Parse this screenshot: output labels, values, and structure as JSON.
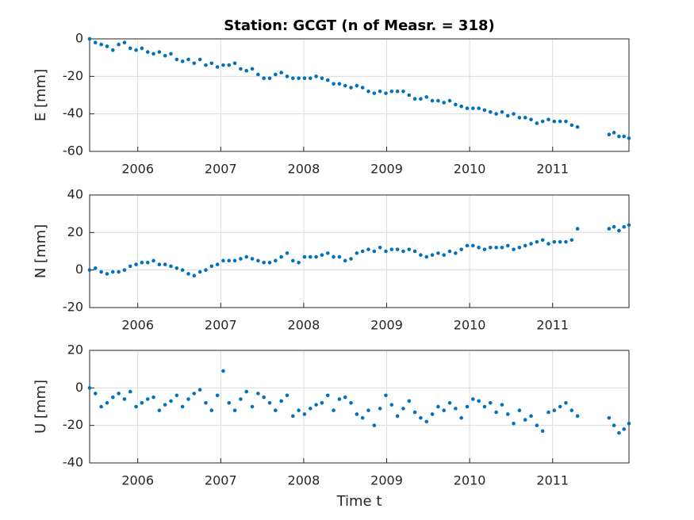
{
  "chart_data": [
    {
      "type": "scatter",
      "title": "Station: GCGT (n of Measr. = 318)",
      "ylabel": "E [mm]",
      "x": [
        2005.42,
        2005.49,
        2005.56,
        2005.63,
        2005.7,
        2005.77,
        2005.84,
        2005.91,
        2005.98,
        2006.05,
        2006.12,
        2006.19,
        2006.26,
        2006.33,
        2006.4,
        2006.47,
        2006.54,
        2006.61,
        2006.68,
        2006.75,
        2006.82,
        2006.89,
        2006.96,
        2007.03,
        2007.1,
        2007.17,
        2007.24,
        2007.31,
        2007.38,
        2007.45,
        2007.52,
        2007.59,
        2007.66,
        2007.73,
        2007.8,
        2007.87,
        2007.94,
        2008.01,
        2008.08,
        2008.15,
        2008.22,
        2008.29,
        2008.36,
        2008.43,
        2008.5,
        2008.57,
        2008.64,
        2008.71,
        2008.78,
        2008.85,
        2008.92,
        2008.99,
        2009.06,
        2009.13,
        2009.2,
        2009.27,
        2009.34,
        2009.41,
        2009.48,
        2009.55,
        2009.62,
        2009.69,
        2009.76,
        2009.83,
        2009.9,
        2009.97,
        2010.04,
        2010.11,
        2010.18,
        2010.25,
        2010.32,
        2010.39,
        2010.46,
        2010.53,
        2010.6,
        2010.67,
        2010.74,
        2010.81,
        2010.88,
        2010.95,
        2011.02,
        2011.09,
        2011.16,
        2011.23,
        2011.3,
        2011.68,
        2011.74,
        2011.8,
        2011.86,
        2011.92
      ],
      "series": [
        {
          "color": "#0072bd",
          "values": [
            0,
            -2,
            -3,
            -4,
            -6,
            -3,
            -2,
            -5,
            -6,
            -5,
            -7,
            -8,
            -7,
            -9,
            -8,
            -11,
            -12,
            -11,
            -13,
            -11,
            -14,
            -13,
            -15,
            -14,
            -14,
            -13,
            -16,
            -17,
            -16,
            -19,
            -21,
            -21,
            -19,
            -18,
            -20,
            -21,
            -21,
            -21,
            -21,
            -20,
            -21,
            -22,
            -24,
            -24,
            -25,
            -26,
            -25,
            -26,
            -28,
            -29,
            -28,
            -29,
            -28,
            -28,
            -28,
            -30,
            -32,
            -32,
            -31,
            -33,
            -33,
            -34,
            -33,
            -35,
            -36,
            -37,
            -37,
            -37,
            -38,
            -39,
            -40,
            -39,
            -41,
            -40,
            -42,
            -42,
            -43,
            -45,
            -44,
            -43,
            -44,
            -44,
            -44,
            -46,
            -47,
            -51,
            -50,
            -52,
            -52,
            -53
          ]
        }
      ],
      "xlim": [
        2005.42,
        2011.92
      ],
      "xticks": [
        2006,
        2007,
        2008,
        2009,
        2010,
        2011
      ],
      "ylim": [
        -60,
        0
      ],
      "yticks": [
        -60,
        -40,
        -20,
        0
      ],
      "grid": true
    },
    {
      "type": "scatter",
      "ylabel": "N [mm]",
      "x": [
        2005.42,
        2005.49,
        2005.56,
        2005.63,
        2005.7,
        2005.77,
        2005.84,
        2005.91,
        2005.98,
        2006.05,
        2006.12,
        2006.19,
        2006.26,
        2006.33,
        2006.4,
        2006.47,
        2006.54,
        2006.61,
        2006.68,
        2006.75,
        2006.82,
        2006.89,
        2006.96,
        2007.03,
        2007.1,
        2007.17,
        2007.24,
        2007.31,
        2007.38,
        2007.45,
        2007.52,
        2007.59,
        2007.66,
        2007.73,
        2007.8,
        2007.87,
        2007.94,
        2008.01,
        2008.08,
        2008.15,
        2008.22,
        2008.29,
        2008.36,
        2008.43,
        2008.5,
        2008.57,
        2008.64,
        2008.71,
        2008.78,
        2008.85,
        2008.92,
        2008.99,
        2009.06,
        2009.13,
        2009.2,
        2009.27,
        2009.34,
        2009.41,
        2009.48,
        2009.55,
        2009.62,
        2009.69,
        2009.76,
        2009.83,
        2009.9,
        2009.97,
        2010.04,
        2010.11,
        2010.18,
        2010.25,
        2010.32,
        2010.39,
        2010.46,
        2010.53,
        2010.6,
        2010.67,
        2010.74,
        2010.81,
        2010.88,
        2010.95,
        2011.02,
        2011.09,
        2011.16,
        2011.23,
        2011.3,
        2011.68,
        2011.74,
        2011.8,
        2011.86,
        2011.92
      ],
      "series": [
        {
          "color": "#0072bd",
          "values": [
            0,
            1,
            -1,
            -2,
            -1,
            -1,
            0,
            2,
            3,
            4,
            4,
            5,
            3,
            3,
            2,
            1,
            0,
            -2,
            -3,
            -1,
            0,
            2,
            3,
            5,
            5,
            5,
            6,
            7,
            6,
            5,
            4,
            4,
            5,
            7,
            9,
            5,
            4,
            7,
            7,
            7,
            8,
            9,
            7,
            7,
            5,
            6,
            9,
            10,
            11,
            10,
            12,
            10,
            11,
            11,
            10,
            11,
            10,
            8,
            7,
            8,
            9,
            8,
            10,
            9,
            11,
            13,
            13,
            12,
            11,
            12,
            12,
            12,
            13,
            11,
            12,
            13,
            14,
            15,
            16,
            14,
            15,
            15,
            15,
            16,
            22,
            22,
            23,
            21,
            23,
            24
          ]
        }
      ],
      "xlim": [
        2005.42,
        2011.92
      ],
      "xticks": [
        2006,
        2007,
        2008,
        2009,
        2010,
        2011
      ],
      "ylim": [
        -20,
        40
      ],
      "yticks": [
        -20,
        0,
        20,
        40
      ],
      "grid": true
    },
    {
      "type": "scatter",
      "ylabel": "U [mm]",
      "xlabel": "Time t",
      "x": [
        2005.42,
        2005.49,
        2005.56,
        2005.63,
        2005.7,
        2005.77,
        2005.84,
        2005.91,
        2005.98,
        2006.05,
        2006.12,
        2006.19,
        2006.26,
        2006.33,
        2006.4,
        2006.47,
        2006.54,
        2006.61,
        2006.68,
        2006.75,
        2006.82,
        2006.89,
        2006.96,
        2007.03,
        2007.1,
        2007.17,
        2007.24,
        2007.31,
        2007.38,
        2007.45,
        2007.52,
        2007.59,
        2007.66,
        2007.73,
        2007.8,
        2007.87,
        2007.94,
        2008.01,
        2008.08,
        2008.15,
        2008.22,
        2008.29,
        2008.36,
        2008.43,
        2008.5,
        2008.57,
        2008.64,
        2008.71,
        2008.78,
        2008.85,
        2008.92,
        2008.99,
        2009.06,
        2009.13,
        2009.2,
        2009.27,
        2009.34,
        2009.41,
        2009.48,
        2009.55,
        2009.62,
        2009.69,
        2009.76,
        2009.83,
        2009.9,
        2009.97,
        2010.04,
        2010.11,
        2010.18,
        2010.25,
        2010.32,
        2010.39,
        2010.46,
        2010.53,
        2010.6,
        2010.67,
        2010.74,
        2010.81,
        2010.88,
        2010.95,
        2011.02,
        2011.09,
        2011.16,
        2011.23,
        2011.3,
        2011.68,
        2011.74,
        2011.8,
        2011.86,
        2011.92
      ],
      "series": [
        {
          "color": "#0072bd",
          "values": [
            0,
            -3,
            -10,
            -8,
            -5,
            -3,
            -6,
            -2,
            -10,
            -8,
            -6,
            -5,
            -12,
            -9,
            -7,
            -4,
            -10,
            -6,
            -3,
            -1,
            -8,
            -12,
            -4,
            9,
            -8,
            -12,
            -6,
            -2,
            -10,
            -3,
            -5,
            -8,
            -12,
            -7,
            -4,
            -15,
            -12,
            -14,
            -11,
            -9,
            -8,
            -4,
            -12,
            -6,
            -5,
            -8,
            -14,
            -16,
            -12,
            -20,
            -11,
            -4,
            -9,
            -15,
            -11,
            -7,
            -13,
            -16,
            -18,
            -14,
            -10,
            -12,
            -8,
            -11,
            -16,
            -10,
            -6,
            -7,
            -10,
            -8,
            -13,
            -9,
            -14,
            -19,
            -12,
            -17,
            -15,
            -20,
            -23,
            -13,
            -12,
            -10,
            -8,
            -12,
            -15,
            -16,
            -20,
            -24,
            -22,
            -19
          ]
        }
      ],
      "xlim": [
        2005.42,
        2011.92
      ],
      "xticks": [
        2006,
        2007,
        2008,
        2009,
        2010,
        2011
      ],
      "ylim": [
        -40,
        20
      ],
      "yticks": [
        -40,
        -20,
        0,
        20
      ],
      "grid": true
    }
  ]
}
